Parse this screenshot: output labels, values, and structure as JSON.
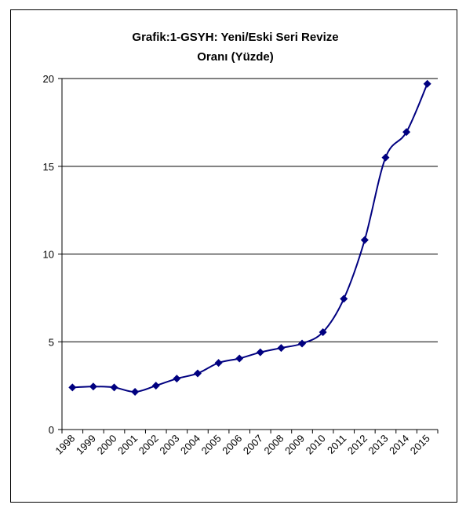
{
  "chart_data": {
    "type": "line",
    "title": [
      "Grafik:1-GSYH: Yeni/Eski Seri Revize",
      "Oranı (Yüzde)"
    ],
    "categories": [
      "1998",
      "1999",
      "2000",
      "2001",
      "2002",
      "2003",
      "2004",
      "2005",
      "2006",
      "2007",
      "2008",
      "2009",
      "2010",
      "2011",
      "2012",
      "2013",
      "2014",
      "2015"
    ],
    "values": [
      2.4,
      2.45,
      2.4,
      2.15,
      2.5,
      2.9,
      3.2,
      3.8,
      4.05,
      4.4,
      4.65,
      4.9,
      5.55,
      7.45,
      10.8,
      15.5,
      16.95,
      19.7
    ],
    "color": "#000080",
    "ylim": [
      0,
      20
    ],
    "yticks": [
      0,
      5,
      10,
      15,
      20
    ],
    "grid": true
  }
}
